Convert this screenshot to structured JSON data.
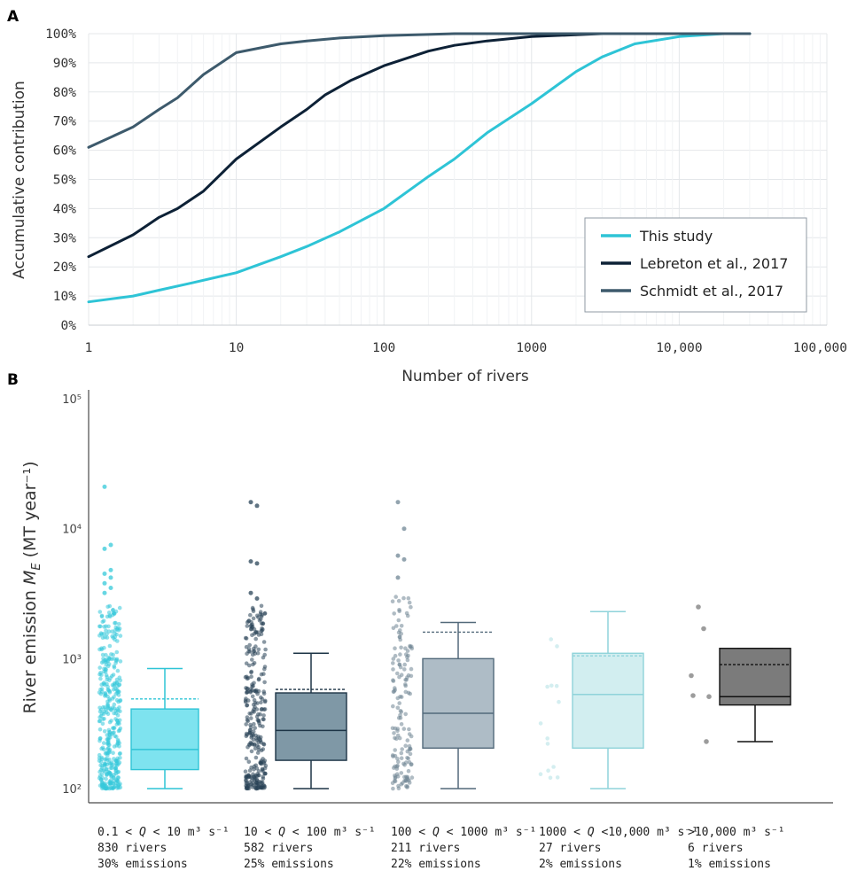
{
  "chart_data": [
    {
      "panel": "A",
      "type": "line",
      "xlabel": "Number of rivers",
      "ylabel": "Accumulative contribution",
      "x_scale": "log",
      "xlim": [
        1,
        100000
      ],
      "ylim": [
        0,
        100
      ],
      "x_tick_labels": [
        "1",
        "10",
        "100",
        "1000",
        "10,000",
        "100,000"
      ],
      "y_tick_labels": [
        "0%",
        "10%",
        "20%",
        "30%",
        "40%",
        "50%",
        "60%",
        "70%",
        "80%",
        "90%",
        "100%"
      ],
      "grid": true,
      "legend_position": "bottom-right",
      "series": [
        {
          "name": "This study",
          "color": "#2ec4d6",
          "points": [
            [
              1,
              8
            ],
            [
              2,
              10
            ],
            [
              3,
              12
            ],
            [
              5,
              14.5
            ],
            [
              10,
              18
            ],
            [
              20,
              23.5
            ],
            [
              30,
              27
            ],
            [
              50,
              32
            ],
            [
              100,
              40
            ],
            [
              200,
              51
            ],
            [
              300,
              57
            ],
            [
              500,
              66
            ],
            [
              1000,
              76
            ],
            [
              2000,
              87
            ],
            [
              3000,
              92
            ],
            [
              5000,
              96.5
            ],
            [
              10000,
              99
            ],
            [
              20000,
              100
            ],
            [
              30000,
              100
            ]
          ]
        },
        {
          "name": "Lebreton et al., 2017",
          "color": "#0d2136",
          "points": [
            [
              1,
              23.5
            ],
            [
              2,
              31
            ],
            [
              3,
              37
            ],
            [
              4,
              40
            ],
            [
              6,
              46
            ],
            [
              10,
              57
            ],
            [
              20,
              68
            ],
            [
              30,
              74
            ],
            [
              40,
              79
            ],
            [
              60,
              84
            ],
            [
              100,
              89
            ],
            [
              200,
              94
            ],
            [
              300,
              96
            ],
            [
              500,
              97.5
            ],
            [
              1000,
              99
            ],
            [
              3000,
              100
            ],
            [
              30000,
              100
            ]
          ]
        },
        {
          "name": "Schmidt et al., 2017",
          "color": "#3d5a6c",
          "points": [
            [
              1,
              61
            ],
            [
              2,
              68
            ],
            [
              3,
              74
            ],
            [
              4,
              78
            ],
            [
              6,
              86
            ],
            [
              10,
              93.5
            ],
            [
              20,
              96.5
            ],
            [
              30,
              97.5
            ],
            [
              50,
              98.5
            ],
            [
              100,
              99.3
            ],
            [
              300,
              100
            ],
            [
              30000,
              100
            ]
          ]
        }
      ]
    },
    {
      "panel": "B",
      "type": "box",
      "ylabel_main": "River emission ",
      "ylabel_var": "M",
      "ylabel_sub": "E",
      "ylabel_units": " (MT year⁻¹)",
      "y_scale": "log",
      "ylim": [
        100,
        100000
      ],
      "y_tick_labels": [
        "10⁵",
        "10⁴",
        "10³",
        "10²"
      ],
      "groups": [
        {
          "label_pre": "0.1 < ",
          "label_var": "Q",
          "label_post": " < 10 m³ s⁻¹",
          "rivers": "830 rivers",
          "emissions": "30% emissions",
          "whisker_low": 100,
          "q1": 140,
          "median": 200,
          "q3": 410,
          "whisker_high": 840,
          "mean": 490,
          "fill": "#7ee3ef",
          "stroke": "#2ec4d6",
          "dot_color": "#35c9da",
          "points_min": 100,
          "points_max": 2600,
          "n_points": 380,
          "outliers": [
            21000,
            7500,
            7000,
            4800,
            4500,
            4200,
            3800,
            3500,
            3200
          ]
        },
        {
          "label_pre": "10 < ",
          "label_var": "Q",
          "label_post": " < 100 m³ s⁻¹",
          "rivers": "582 rivers",
          "emissions": "25% emissions",
          "whisker_low": 100,
          "q1": 165,
          "median": 280,
          "q3": 545,
          "whisker_high": 1100,
          "mean": 580,
          "fill": "#7f98a6",
          "stroke": "#1d3446",
          "dot_color": "#2a4458",
          "points_min": 100,
          "points_max": 2600,
          "n_points": 300,
          "outliers": [
            16000,
            15000,
            5600,
            5400,
            3200,
            2900
          ]
        },
        {
          "label_pre": "100 < ",
          "label_var": "Q",
          "label_post": " < 1000 m³ s⁻¹",
          "rivers": "211 rivers",
          "emissions": "22% emissions",
          "whisker_low": 100,
          "q1": 205,
          "median": 380,
          "q3": 1000,
          "whisker_high": 1900,
          "mean": 1600,
          "fill": "#aebcc6",
          "stroke": "#52697a",
          "dot_color": "#6f8594",
          "points_min": 100,
          "points_max": 3000,
          "n_points": 150,
          "outliers": [
            16000,
            10000,
            6200,
            5800,
            4200
          ]
        },
        {
          "label_pre": "1000 < ",
          "label_var": "Q",
          "label_post": " <10,000 m³ s⁻¹",
          "rivers": "27 rivers",
          "emissions": "2% emissions",
          "whisker_low": 100,
          "q1": 205,
          "median": 530,
          "q3": 1100,
          "whisker_high": 2300,
          "mean": 1050,
          "fill": "#d2eef0",
          "stroke": "#8fd3da",
          "dot_color": "#a9dde2",
          "points_min": 120,
          "points_max": 1800,
          "n_points": 14,
          "outliers": []
        },
        {
          "label_pre": ">10,000 m³ s⁻¹",
          "label_var": "",
          "label_post": "",
          "rivers": "6 rivers",
          "emissions": "1% emissions",
          "whisker_low": 230,
          "q1": 440,
          "median": 510,
          "q3": 1200,
          "whisker_high": 1200,
          "mean": 900,
          "fill": "#7b7b7b",
          "stroke": "#111111",
          "dot_color": "#7b7b7b",
          "points_min": 0,
          "points_max": 0,
          "n_points": 0,
          "outliers": [
            2500,
            1700,
            740,
            520,
            510,
            230
          ]
        }
      ]
    }
  ],
  "panels": {
    "a": "A",
    "b": "B"
  }
}
